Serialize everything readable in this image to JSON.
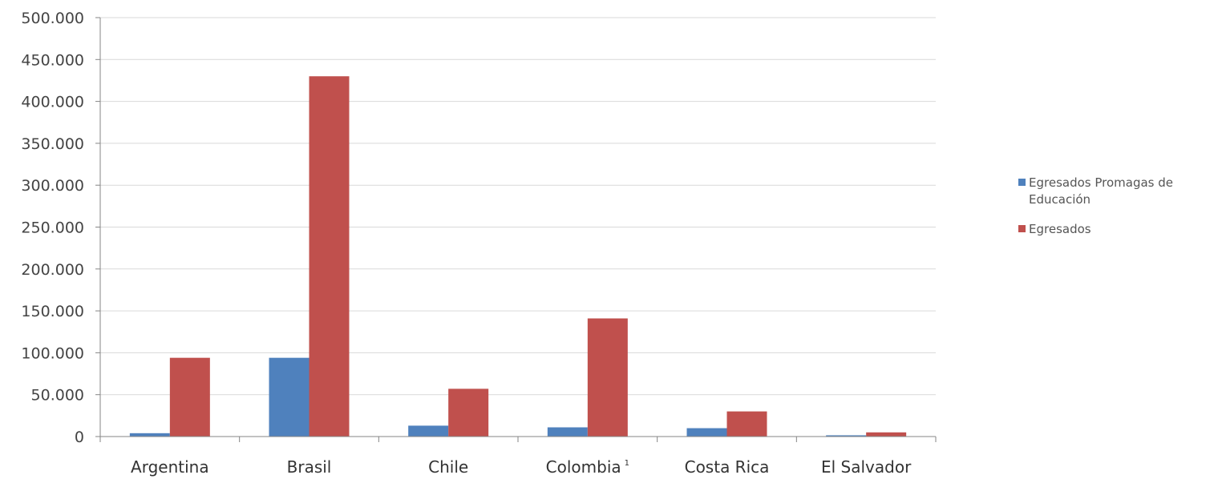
{
  "chart_data": {
    "type": "bar",
    "categories": [
      "Argentina",
      "Brasil",
      "Chile",
      "Colombia",
      "Costa Rica",
      "El Salvador"
    ],
    "category_superscripts": [
      "",
      "",
      "",
      "1",
      "",
      ""
    ],
    "series": [
      {
        "name": "Egresados Promagas de Educación",
        "legend_lines": [
          "Egresados Promagas de",
          "Educación"
        ],
        "color": "#4f81bd",
        "values": [
          4000,
          94000,
          13000,
          11000,
          10000,
          1500
        ]
      },
      {
        "name": "Egresados",
        "legend_lines": [
          "Egresados"
        ],
        "color": "#c0504d",
        "values": [
          94000,
          430000,
          57000,
          141000,
          30000,
          5000
        ]
      }
    ],
    "y_ticks": [
      {
        "value": 0,
        "label": "0"
      },
      {
        "value": 50000,
        "label": "50.000"
      },
      {
        "value": 100000,
        "label": "100.000"
      },
      {
        "value": 150000,
        "label": "150.000"
      },
      {
        "value": 200000,
        "label": "200.000"
      },
      {
        "value": 250000,
        "label": "250.000"
      },
      {
        "value": 300000,
        "label": "300.000"
      },
      {
        "value": 350000,
        "label": "350.000"
      },
      {
        "value": 400000,
        "label": "400.000"
      },
      {
        "value": 450000,
        "label": "450.000"
      },
      {
        "value": 500000,
        "label": "500.000"
      }
    ],
    "ylim": [
      0,
      500000
    ],
    "title": "",
    "xlabel": "",
    "ylabel": "",
    "grid": true,
    "legend_position": "right"
  }
}
